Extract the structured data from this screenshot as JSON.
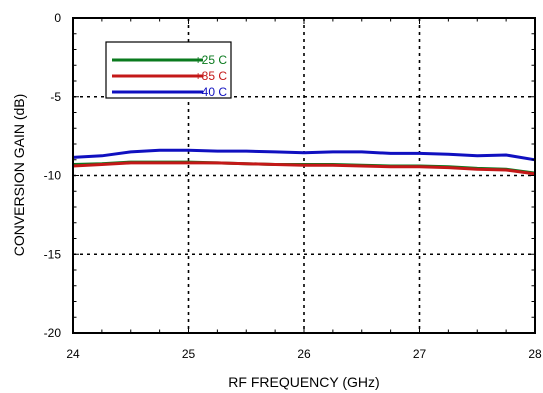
{
  "chart_data": {
    "type": "line",
    "xlabel": "RF FREQUENCY (GHz)",
    "ylabel": "CONVERSION GAIN (dB)",
    "xlim": [
      24,
      28
    ],
    "ylim": [
      -20,
      0
    ],
    "x_ticks": [
      24,
      25,
      26,
      27,
      28
    ],
    "y_ticks": [
      0,
      -5,
      -10,
      -15,
      -20
    ],
    "x_tick_labels": [
      "24",
      "25",
      "26",
      "27",
      "28"
    ],
    "y_tick_labels": [
      "0",
      "-5",
      "-10",
      "-15",
      "-20"
    ],
    "grid": "dashed",
    "legend_position": "top-left",
    "series": [
      {
        "name": "+25 C",
        "color": "#0a7a1e",
        "x": [
          24.0,
          24.25,
          24.5,
          24.75,
          25.0,
          25.25,
          25.5,
          25.75,
          26.0,
          26.25,
          26.5,
          26.75,
          27.0,
          27.25,
          27.5,
          27.75,
          28.0
        ],
        "y": [
          -9.3,
          -9.25,
          -9.15,
          -9.15,
          -9.15,
          -9.2,
          -9.25,
          -9.3,
          -9.3,
          -9.3,
          -9.35,
          -9.4,
          -9.4,
          -9.45,
          -9.55,
          -9.6,
          -9.85
        ]
      },
      {
        "name": "+85 C",
        "color": "#c41818",
        "x": [
          24.0,
          24.25,
          24.5,
          24.75,
          25.0,
          25.25,
          25.5,
          25.75,
          26.0,
          26.25,
          26.5,
          26.75,
          27.0,
          27.25,
          27.5,
          27.75,
          28.0
        ],
        "y": [
          -9.4,
          -9.3,
          -9.2,
          -9.2,
          -9.2,
          -9.2,
          -9.25,
          -9.3,
          -9.35,
          -9.35,
          -9.4,
          -9.45,
          -9.45,
          -9.5,
          -9.6,
          -9.65,
          -9.9
        ]
      },
      {
        "name": "-40 C",
        "color": "#1010c0",
        "x": [
          24.0,
          24.25,
          24.5,
          24.75,
          25.0,
          25.25,
          25.5,
          25.75,
          26.0,
          26.25,
          26.5,
          26.75,
          27.0,
          27.25,
          27.5,
          27.75,
          28.0
        ],
        "y": [
          -8.85,
          -8.75,
          -8.5,
          -8.4,
          -8.4,
          -8.45,
          -8.45,
          -8.5,
          -8.55,
          -8.5,
          -8.5,
          -8.6,
          -8.6,
          -8.65,
          -8.75,
          -8.7,
          -9.0
        ]
      }
    ]
  }
}
